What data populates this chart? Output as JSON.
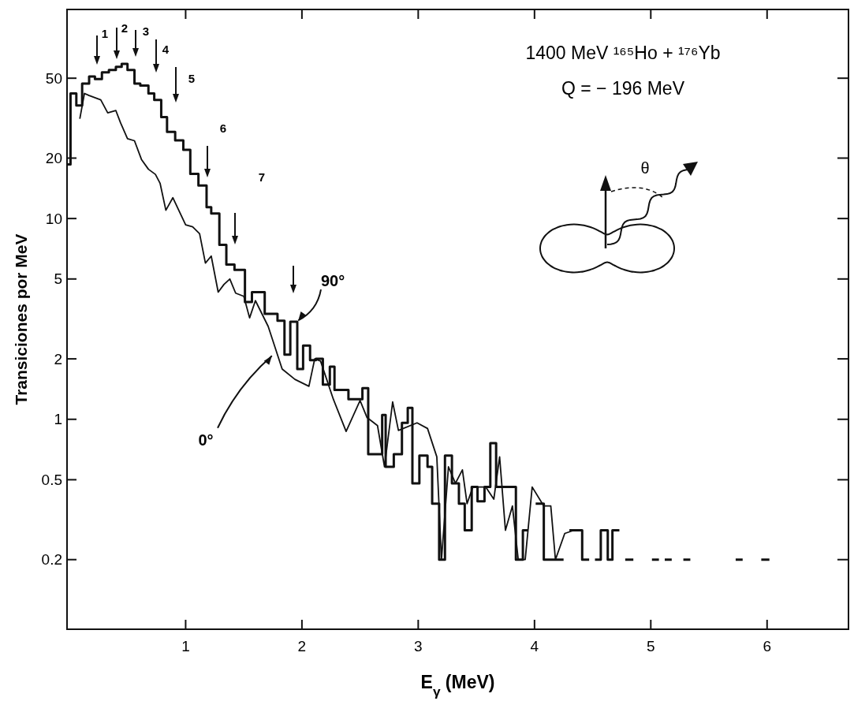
{
  "chart_data": {
    "type": "step",
    "title": "1400 MeV ¹⁶⁵Ho + ¹⁷⁶Yb",
    "subtitle": "Q = − 196 MeV",
    "xlabel": "E$_{γ}$ (MeV)",
    "ylabel": "Transiciones por MeV",
    "log": "y",
    "grid": false,
    "xlim": [
      -0.02,
      6.7
    ],
    "xticks": [
      1,
      2,
      3,
      4,
      5,
      6
    ],
    "ylim": [
      0.09,
      110
    ],
    "yticks": [
      0.2,
      0.5,
      1,
      2,
      5,
      10,
      20,
      50
    ],
    "series": [
      {
        "color": "#111111",
        "x": [
          -0.02,
          0.01,
          0.06,
          0.11,
          0.17,
          0.22,
          0.28,
          0.34,
          0.4,
          0.45,
          0.5,
          0.56,
          0.61,
          0.68,
          0.73,
          0.79,
          0.84,
          0.91,
          0.98,
          1.04,
          1.11,
          1.18,
          1.22,
          1.29,
          1.35,
          1.42,
          1.51,
          1.57,
          1.68,
          1.79,
          1.85,
          1.9,
          1.96,
          2.01,
          2.07,
          2.12,
          2.18,
          2.24,
          2.28,
          2.4,
          2.52,
          2.57,
          2.69,
          2.72,
          2.79,
          2.86,
          2.91,
          2.95,
          3.01,
          3.08,
          3.12,
          3.18,
          3.23,
          3.29,
          3.35,
          3.4,
          3.46,
          3.51,
          3.57,
          3.62,
          3.67,
          3.84,
          3.9,
          3.94,
          4.01,
          4.08,
          4.25,
          4.3,
          4.41,
          4.47,
          4.52,
          4.57,
          4.63,
          4.67,
          4.73,
          4.78,
          4.85,
          5.01,
          5.07,
          5.12,
          5.18,
          5.28,
          5.34,
          5.73,
          5.79,
          5.95,
          6.02
        ],
        "values": [
          18.6,
          42,
          36.6,
          47,
          51,
          49.5,
          53.5,
          55,
          57,
          59,
          55,
          47,
          46,
          42,
          39,
          32,
          27,
          24.5,
          22,
          16.7,
          14.6,
          11.4,
          10.6,
          7.4,
          5.9,
          5.55,
          3.84,
          4.3,
          3.35,
          3.1,
          2.1,
          3.06,
          1.78,
          2.33,
          1.97,
          2.0,
          1.49,
          1.83,
          1.4,
          1.26,
          1.43,
          0.67,
          1.05,
          0.58,
          0.67,
          0.96,
          1.14,
          0.48,
          0.66,
          0.58,
          0.38,
          0.2,
          0.66,
          0.48,
          0.38,
          0.28,
          0.46,
          0.39,
          0.46,
          0.76,
          0.46,
          0.2,
          0.28,
          null,
          0.38,
          0.2,
          null,
          0.28,
          0.2,
          null,
          0.2,
          0.28,
          0.2,
          0.28,
          null,
          0.2,
          null,
          0.2,
          null,
          0.2,
          null,
          0.2,
          null,
          0.2,
          null,
          0.2,
          0.2
        ]
      },
      {
        "type": "line",
        "color": "#111111",
        "x": [
          0.09,
          0.13,
          0.17,
          0.27,
          0.33,
          0.4,
          0.44,
          0.5,
          0.56,
          0.62,
          0.68,
          0.74,
          0.78,
          0.83,
          0.89,
          1.0,
          1.06,
          1.12,
          1.17,
          1.22,
          1.28,
          1.33,
          1.38,
          1.43,
          1.5,
          1.55,
          1.6,
          1.71,
          1.83,
          1.94,
          2.06,
          2.11,
          2.16,
          2.27,
          2.38,
          2.5,
          2.56,
          2.65,
          2.71,
          2.78,
          2.83,
          2.99,
          3.08,
          3.16,
          3.2,
          3.26,
          3.32,
          3.38,
          3.42,
          3.47,
          3.58,
          3.65,
          3.7,
          3.75,
          3.81,
          3.86,
          3.92,
          3.98,
          4.08,
          4.14,
          4.18,
          4.26,
          4.34
        ],
        "values": [
          31.4,
          42,
          41,
          39,
          33.6,
          34.5,
          30,
          25,
          24.4,
          19.7,
          17.6,
          16.6,
          15,
          11,
          12.7,
          9.3,
          9.1,
          8.4,
          6.0,
          6.5,
          4.3,
          4.7,
          5.0,
          4.25,
          4.1,
          3.2,
          3.9,
          2.9,
          1.78,
          1.58,
          1.46,
          2.0,
          1.95,
          1.26,
          0.87,
          1.24,
          1.02,
          0.93,
          0.58,
          1.22,
          0.88,
          0.96,
          0.9,
          0.65,
          0.2,
          0.58,
          0.48,
          0.56,
          0.38,
          0.46,
          0.46,
          0.4,
          0.65,
          0.28,
          0.37,
          0.2,
          0.2,
          0.46,
          0.37,
          0.37,
          0.2,
          0.27,
          0.28
        ]
      }
    ],
    "annotations": [
      "1",
      "2",
      "3",
      "4",
      "5",
      "6",
      "7",
      {
        "text": "90°",
        "x": 1.96,
        "y": 3.06
      },
      {
        "text": "0°",
        "x": 1.75,
        "y": 2.1
      },
      "θ"
    ]
  }
}
